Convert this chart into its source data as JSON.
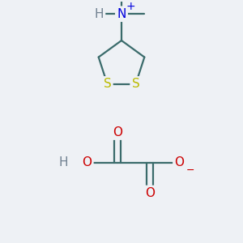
{
  "background_color": "#eef1f5",
  "fig_size": [
    3.0,
    3.0
  ],
  "dpi": 100,
  "atom_colors": {
    "C": "#3a6b6b",
    "O": "#cc0000",
    "N": "#0000dd",
    "S": "#bbbb00",
    "H": "#708090"
  },
  "bond_color": "#3a6b6b",
  "bond_lw": 1.6,
  "font_size_atom": 11,
  "font_size_small": 8
}
